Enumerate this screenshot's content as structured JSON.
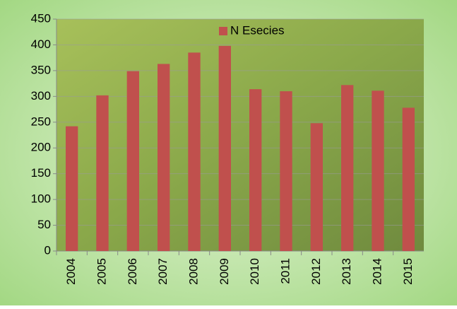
{
  "chart_data": {
    "type": "bar",
    "categories": [
      "2004",
      "2005",
      "2006",
      "2007",
      "2008",
      "2009",
      "2010",
      "2011",
      "2012",
      "2013",
      "2014",
      "2015"
    ],
    "series": [
      {
        "name": "N Esecies",
        "color": "#c0504d",
        "values": [
          242,
          302,
          349,
          363,
          385,
          398,
          314,
          310,
          248,
          322,
          311,
          278
        ]
      }
    ],
    "ylim": [
      0,
      450
    ],
    "yticks": [
      0,
      50,
      100,
      150,
      200,
      250,
      300,
      350,
      400,
      450
    ],
    "grid": true,
    "legend": "top"
  }
}
